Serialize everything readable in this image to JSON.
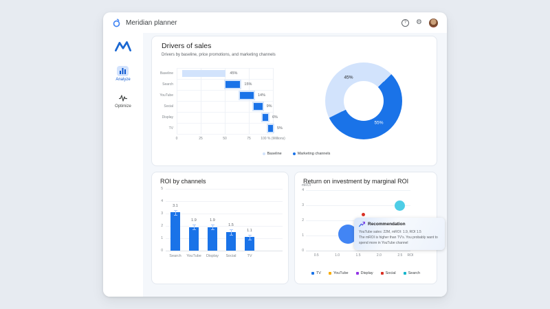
{
  "app": {
    "title": "Meridian planner",
    "icons": {
      "help": "?",
      "settings": "⚙"
    }
  },
  "sidebar": {
    "items": [
      {
        "label": "Analyze",
        "active": true
      },
      {
        "label": "Optimize",
        "active": false
      }
    ]
  },
  "drivers_card": {
    "title": "Drivers of sales",
    "subtitle": "Drivers by baseline, price promotions, and marketing channels",
    "legend": [
      {
        "label": "Baseline",
        "color": "#d2e3fc"
      },
      {
        "label": "Marketing channels",
        "color": "#1a73e8"
      }
    ]
  },
  "roi_card": {
    "title": "ROI by channels"
  },
  "mroi_card": {
    "title": "Return on investment by marginal ROI",
    "recommendation": {
      "title": "Recommendation",
      "line1": "YouTube sales: 22M, mROI: 1.9, ROI 1.5",
      "body": "The mROI is higher than TV's. You probably want to spend more in YouTube channel"
    },
    "legend": [
      {
        "label": "TV",
        "color": "#1a73e8"
      },
      {
        "label": "YouTube",
        "color": "#f9ab00"
      },
      {
        "label": "Display",
        "color": "#9334e6"
      },
      {
        "label": "Social",
        "color": "#d93025"
      },
      {
        "label": "Search",
        "color": "#12b5cb"
      }
    ]
  },
  "chart_data": [
    {
      "id": "drivers-waterfall",
      "type": "bar",
      "variant": "horizontal-waterfall",
      "title": "Drivers of sales",
      "categories": [
        "Baseline",
        "Search",
        "YouTube",
        "Social",
        "Display",
        "TV"
      ],
      "values": [
        45,
        15,
        14,
        9,
        6,
        5
      ],
      "starts": [
        6,
        51,
        66,
        80,
        89,
        95
      ],
      "labels": [
        "45%",
        "15%",
        "14%",
        "9%",
        "6%",
        "5%"
      ],
      "x_tick_values": [
        0,
        25,
        50,
        75,
        100
      ],
      "x_tick_labels": [
        "0",
        "25",
        "50",
        "75",
        "100 % (Millions)"
      ],
      "xlim": [
        0,
        100
      ],
      "grid": true,
      "colors": {
        "baseline": "#d2e3fc",
        "marketing": "#1a73e8"
      }
    },
    {
      "id": "sales-split-donut",
      "type": "pie",
      "variant": "donut",
      "slices": [
        {
          "label": "Baseline",
          "value": 45,
          "text": "45%",
          "color": "#d2e3fc"
        },
        {
          "label": "Marketing channels",
          "value": 55,
          "text": "55%",
          "color": "#1a73e8"
        }
      ]
    },
    {
      "id": "roi-by-channels",
      "type": "bar",
      "title": "ROI by channels",
      "categories": [
        "Search",
        "YouTube",
        "Display",
        "Social",
        "TV"
      ],
      "values": [
        3.1,
        1.9,
        1.9,
        1.5,
        1.1
      ],
      "value_labels": [
        "3.1",
        "1.9",
        "1.9",
        "1.5",
        "1.1"
      ],
      "error_margin": 0.2,
      "ylim": [
        0,
        5
      ],
      "y_ticks": [
        0,
        1,
        2,
        3,
        4,
        5
      ],
      "grid": true,
      "bar_color": "#1a73e8"
    },
    {
      "id": "mroi-bubbles",
      "type": "scatter",
      "variant": "bubble",
      "title": "Return on investment by marginal ROI",
      "x_label": "ROI",
      "y_label": "mROI",
      "xlim": [
        0.25,
        2.75
      ],
      "ylim": [
        0,
        4
      ],
      "x_tick_values": [
        0.5,
        1.0,
        1.5,
        2.0,
        2.5
      ],
      "x_tick_labels": [
        "0.5",
        "1.0",
        "1.5",
        "2.0",
        "2.5"
      ],
      "y_ticks": [
        0,
        1,
        2,
        3,
        4
      ],
      "grid": true,
      "legend_position": "bottom",
      "series": [
        {
          "name": "TV",
          "x": 1.25,
          "y": 1.1,
          "size": 28,
          "color": "#4285f4"
        },
        {
          "name": "YouTube",
          "x": 1.5,
          "y": 1.9,
          "size": 11,
          "color": "#fbbc04"
        },
        {
          "name": "Display",
          "x": 1.7,
          "y": 1.9,
          "size": 10,
          "color": "#a142f4"
        },
        {
          "name": "Social",
          "x": 1.62,
          "y": 2.4,
          "size": 5,
          "color": "#d93025"
        },
        {
          "name": "Search",
          "x": 2.5,
          "y": 3.0,
          "size": 15,
          "color": "#4ecde6"
        }
      ]
    }
  ]
}
